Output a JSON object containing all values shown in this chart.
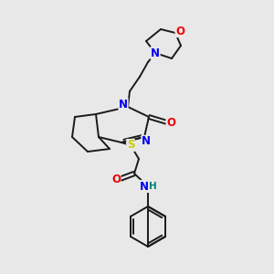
{
  "background_color": "#e8e8e8",
  "bond_color": "#1a1a1a",
  "atom_colors": {
    "N": "#0000ee",
    "O": "#ee0000",
    "S": "#cccc00",
    "H": "#008080",
    "C": "#1a1a1a"
  },
  "figsize": [
    3.0,
    3.0
  ],
  "dpi": 100
}
